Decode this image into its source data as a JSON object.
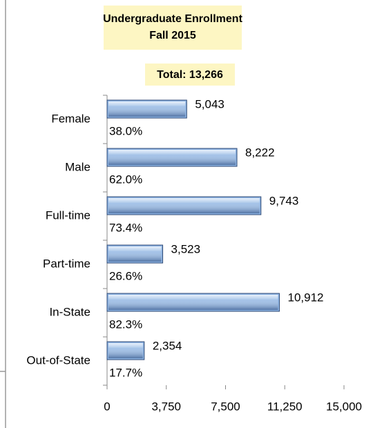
{
  "chart_data": {
    "type": "hbar",
    "title": "Undergraduate Enrollment",
    "subtitle": "Fall 2015",
    "annotation": "Total: 13,266",
    "categories": [
      "Female",
      "Male",
      "Full-time",
      "Part-time",
      "In-State",
      "Out-of-State"
    ],
    "values": [
      5043,
      8222,
      9743,
      3523,
      10912,
      2354
    ],
    "value_labels": [
      "5,043",
      "8,222",
      "9,743",
      "3,523",
      "10,912",
      "2,354"
    ],
    "percents": [
      38.0,
      62.0,
      73.4,
      26.6,
      82.3,
      17.7
    ],
    "percent_labels": [
      "38.0%",
      "62.0%",
      "73.4%",
      "26.6%",
      "82.3%",
      "17.7%"
    ],
    "color": "#8db3e2",
    "xlim": [
      0,
      15000
    ],
    "xticks": [
      0,
      {
        "value": 3750,
        "label": "3,750"
      },
      {
        "value": 7500,
        "label": "7,500"
      },
      {
        "value": 11250,
        "label": "11,250"
      },
      {
        "value": 15000,
        "label": "15,000"
      }
    ],
    "grid": false
  }
}
